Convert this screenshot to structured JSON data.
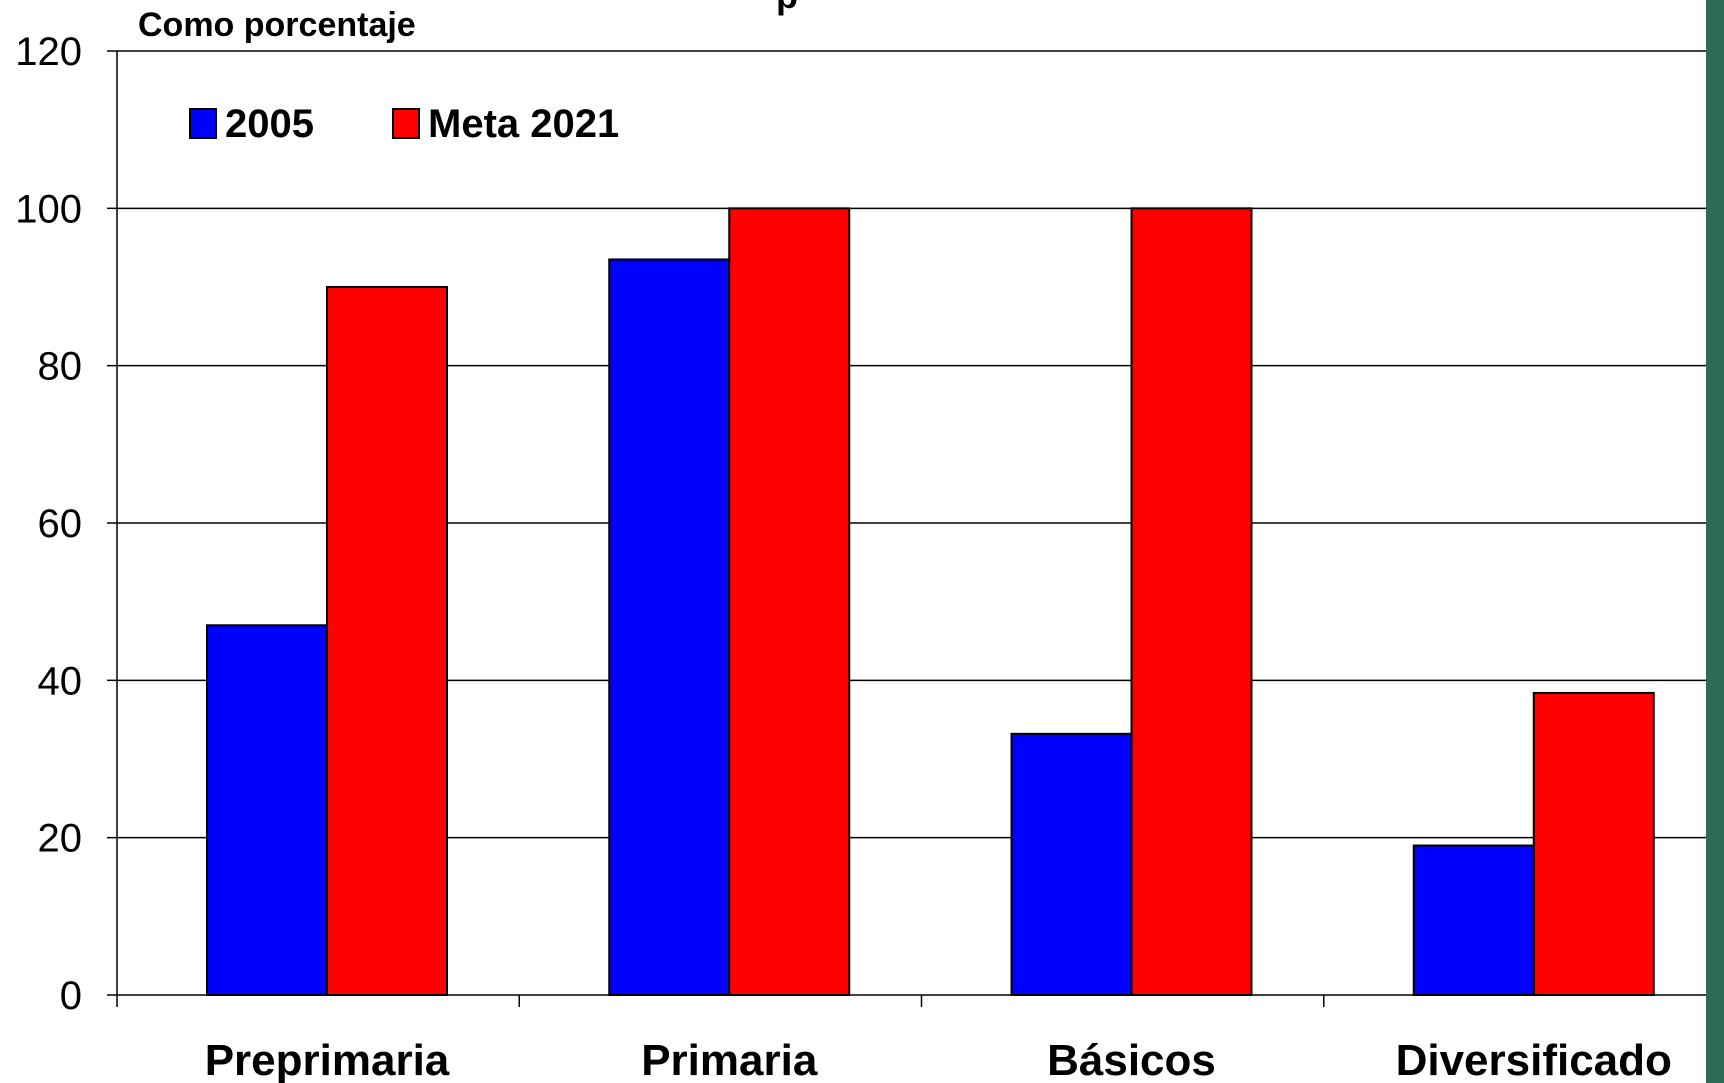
{
  "chart_data": {
    "type": "bar",
    "title": "p",
    "ylabel": "Como porcentaje",
    "xlabel": "",
    "categories": [
      "Preprimaria",
      "Primaria",
      "Básicos",
      "Diversificado"
    ],
    "series": [
      {
        "name": "2005",
        "color": "#0000ff",
        "values": [
          47,
          93.5,
          33.2,
          19
        ]
      },
      {
        "name": "Meta 2021",
        "color": "#ff0000",
        "values": [
          90,
          100,
          100,
          38.4
        ]
      }
    ],
    "ylim": [
      0,
      120
    ],
    "yticks": [
      "0",
      "20",
      "40",
      "60",
      "80",
      "100",
      "120"
    ],
    "grid": true,
    "legend_position": "top-left"
  },
  "decor": {
    "right_strip_color": "#2e6b55"
  }
}
